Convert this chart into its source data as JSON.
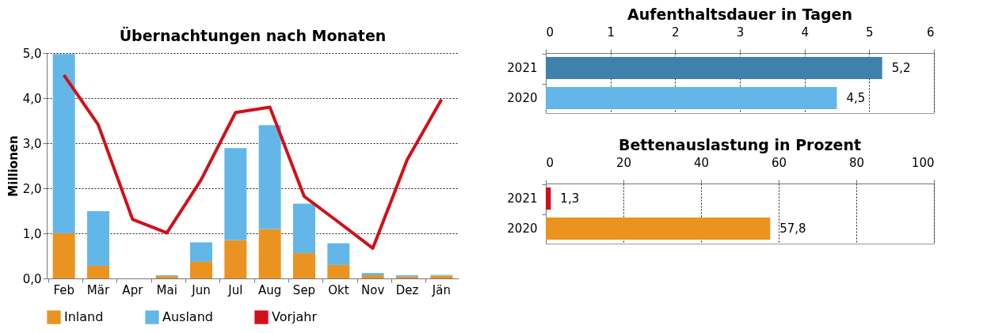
{
  "chart_data": [
    {
      "type": "bar",
      "title": "Übernachtungen nach Monaten",
      "ylabel": "Millionen",
      "stacked": true,
      "categories": [
        "Feb",
        "Mär",
        "Apr",
        "Mai",
        "Jun",
        "Jul",
        "Aug",
        "Sep",
        "Okt",
        "Nov",
        "Dez",
        "Jän"
      ],
      "series": [
        {
          "name": "Inland",
          "color": "#ea9320",
          "values": [
            1.0,
            0.28,
            0,
            0.05,
            0.37,
            0.85,
            1.09,
            0.56,
            0.3,
            0.07,
            0.04,
            0.06
          ]
        },
        {
          "name": "Ausland",
          "color": "#63b7e8",
          "values": [
            3.98,
            1.21,
            0,
            0.02,
            0.43,
            2.04,
            2.31,
            1.1,
            0.48,
            0.05,
            0.03,
            0.02
          ]
        },
        {
          "name": "Vorjahr",
          "type": "line",
          "color": "#d0101a",
          "values": [
            4.51,
            3.41,
            1.31,
            1.01,
            2.19,
            3.68,
            3.8,
            1.82,
            1.25,
            0.67,
            2.63,
            3.97
          ]
        }
      ],
      "ylim": [
        0,
        5
      ],
      "yticks": [
        {
          "value": 0,
          "label": "0,0"
        },
        {
          "value": 1,
          "label": "1,0"
        },
        {
          "value": 2,
          "label": "2,0"
        },
        {
          "value": 3,
          "label": "3,0"
        },
        {
          "value": 4,
          "label": "4,0"
        },
        {
          "value": 5,
          "label": "5,0"
        }
      ],
      "grid": "y",
      "legend": "bottom"
    },
    {
      "type": "bar",
      "title": "Aufenthaltsdauer in Tagen",
      "orientation": "horizontal",
      "categories": [
        "2021",
        "2020"
      ],
      "values": [
        5.2,
        4.5
      ],
      "colors": [
        "#3f81ad",
        "#63b7e8"
      ],
      "value_labels": [
        "5,2",
        "4,5"
      ],
      "xlim": [
        0,
        6
      ],
      "xticks": [
        0,
        1,
        2,
        3,
        4,
        5,
        6
      ],
      "grid": "x"
    },
    {
      "type": "bar",
      "title": "Bettenauslastung in Prozent",
      "orientation": "horizontal",
      "categories": [
        "2021",
        "2020"
      ],
      "values": [
        1.3,
        57.8
      ],
      "colors": [
        "#d0101a",
        "#ea9320"
      ],
      "value_labels": [
        "1,3",
        "57,8"
      ],
      "xlim": [
        0,
        100
      ],
      "xticks": [
        0,
        20,
        40,
        60,
        80,
        100
      ],
      "grid": "x"
    }
  ]
}
